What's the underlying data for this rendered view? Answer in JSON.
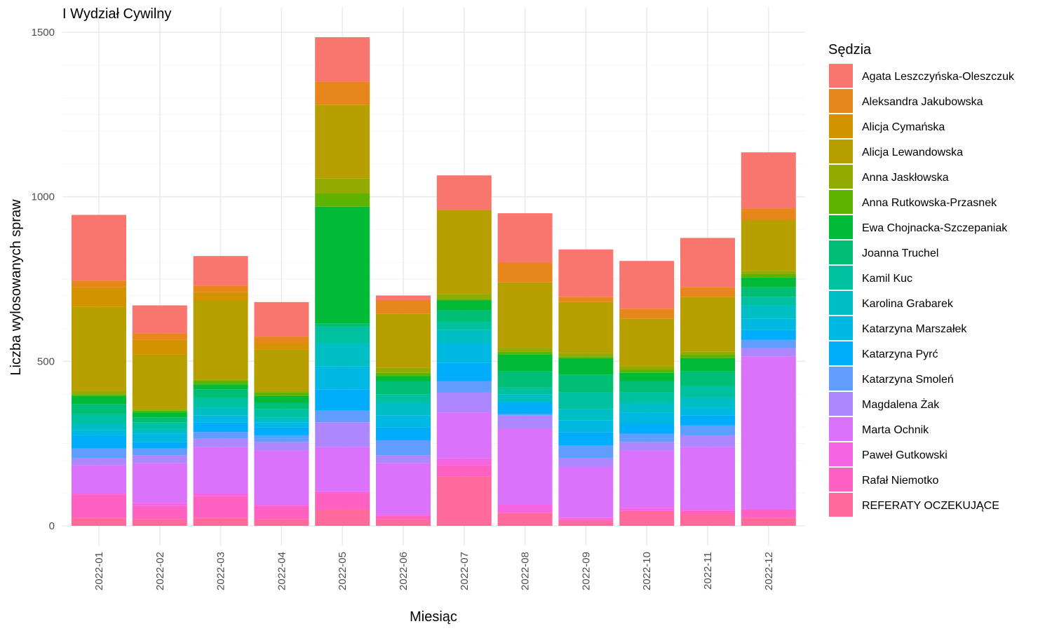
{
  "chart_data": {
    "type": "bar",
    "stacked": true,
    "title": "I Wydział Cywilny",
    "xlabel": "Miesiąc",
    "ylabel": "Liczba wylosowanych spraw",
    "ylim": [
      0,
      1500
    ],
    "yticks": [
      0,
      500,
      1000,
      1500
    ],
    "grid": true,
    "legend_title": "Sędzia",
    "legend_position": "right",
    "categories": [
      "2022-01",
      "2022-02",
      "2022-03",
      "2022-04",
      "2022-05",
      "2022-06",
      "2022-07",
      "2022-08",
      "2022-09",
      "2022-10",
      "2022-11",
      "2022-12"
    ],
    "series": [
      {
        "name": "Agata Leszczyńska-Oleszczuk",
        "color": "#F8766D",
        "values": [
          200,
          85,
          90,
          105,
          135,
          15,
          105,
          150,
          145,
          145,
          150,
          170
        ]
      },
      {
        "name": "Aleksandra Jakubowska",
        "color": "#E7861B",
        "values": [
          20,
          20,
          20,
          20,
          70,
          40,
          0,
          60,
          15,
          30,
          30,
          35
        ]
      },
      {
        "name": "Alicja Cymańska",
        "color": "#D39200",
        "values": [
          60,
          45,
          25,
          20,
          0,
          0,
          0,
          0,
          0,
          0,
          0,
          0
        ]
      },
      {
        "name": "Alicja Lewandowska",
        "color": "#B79F00",
        "values": [
          255,
          165,
          240,
          125,
          225,
          165,
          255,
          200,
          155,
          145,
          165,
          155
        ]
      },
      {
        "name": "Anna Jaskłowska",
        "color": "#93AA00",
        "values": [
          10,
          5,
          5,
          5,
          45,
          15,
          15,
          10,
          10,
          10,
          10,
          10
        ]
      },
      {
        "name": "Anna Rutkowska-Przasnek",
        "color": "#5EB300",
        "values": [
          5,
          5,
          10,
          10,
          40,
          10,
          5,
          10,
          5,
          10,
          10,
          10
        ]
      },
      {
        "name": "Ewa Chojnacka-Szczepaniak",
        "color": "#00BA38",
        "values": [
          25,
          15,
          15,
          20,
          355,
          15,
          30,
          50,
          50,
          25,
          40,
          30
        ]
      },
      {
        "name": "Joanna Truchel",
        "color": "#00BF74",
        "values": [
          30,
          15,
          25,
          20,
          10,
          40,
          35,
          50,
          55,
          35,
          45,
          30
        ]
      },
      {
        "name": "Kamil Kuc",
        "color": "#00C19F",
        "values": [
          30,
          20,
          30,
          25,
          50,
          25,
          25,
          20,
          50,
          30,
          35,
          25
        ]
      },
      {
        "name": "Karolina Grabarek",
        "color": "#00BFC4",
        "values": [
          20,
          15,
          25,
          15,
          70,
          40,
          40,
          25,
          35,
          30,
          30,
          40
        ]
      },
      {
        "name": "Katarzyna Marszałek",
        "color": "#00B9E3",
        "values": [
          15,
          25,
          20,
          15,
          70,
          35,
          60,
          0,
          35,
          35,
          25,
          35
        ]
      },
      {
        "name": "Katarzyna Pyrć",
        "color": "#00ADFA",
        "values": [
          40,
          20,
          30,
          25,
          65,
          40,
          55,
          35,
          40,
          30,
          30,
          30
        ]
      },
      {
        "name": "Katarzyna Smoleń",
        "color": "#619CFF",
        "values": [
          30,
          20,
          20,
          20,
          35,
          45,
          35,
          5,
          40,
          25,
          30,
          25
        ]
      },
      {
        "name": "Magdalena Żak",
        "color": "#AE87FF",
        "values": [
          20,
          25,
          25,
          25,
          75,
          25,
          60,
          40,
          25,
          25,
          35,
          25
        ]
      },
      {
        "name": "Marta Ochnik",
        "color": "#DB72FB",
        "values": [
          85,
          120,
          140,
          165,
          135,
          155,
          140,
          230,
          155,
          175,
          190,
          465
        ]
      },
      {
        "name": "Paweł Gutkowski",
        "color": "#F564E3",
        "values": [
          5,
          10,
          10,
          5,
          5,
          5,
          20,
          25,
          5,
          10,
          5,
          0
        ]
      },
      {
        "name": "Rafał Niemotko",
        "color": "#FF61C3",
        "values": [
          70,
          40,
          65,
          40,
          50,
          10,
          35,
          0,
          5,
          0,
          10,
          25
        ]
      },
      {
        "name": "REFERATY OCZEKUJĄCE",
        "color": "#FF699C",
        "values": [
          25,
          20,
          25,
          20,
          50,
          20,
          150,
          40,
          15,
          45,
          35,
          25
        ]
      }
    ]
  }
}
